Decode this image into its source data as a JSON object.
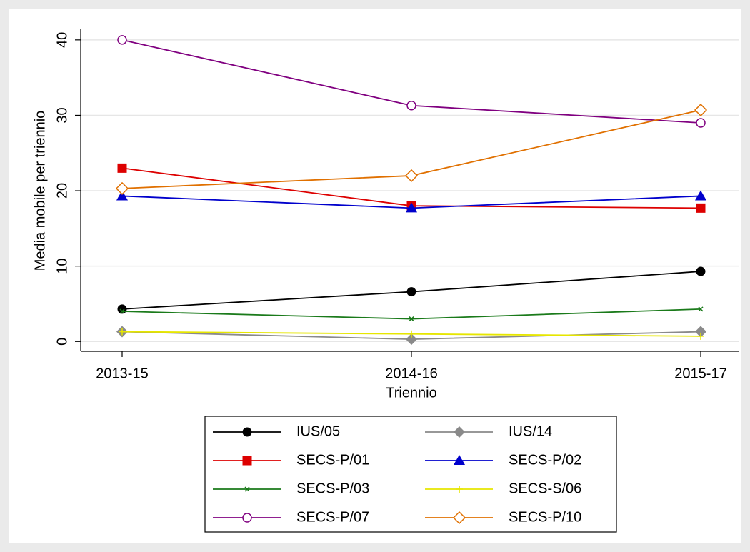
{
  "chart_data": {
    "type": "line",
    "x_label": "Triennio",
    "y_label": "Media mobile per triennio",
    "categories": [
      "2013-15",
      "2014-16",
      "2015-17"
    ],
    "ylim": [
      -1.3,
      41.5
    ],
    "yticks": [
      0,
      10,
      20,
      30,
      40
    ],
    "grid": true,
    "legend": "bottom",
    "series": [
      {
        "name": "IUS/05",
        "color": "#000000",
        "marker": "circle",
        "values": [
          4.3,
          6.6,
          9.3
        ]
      },
      {
        "name": "IUS/14",
        "color": "#8a8a8a",
        "marker": "diamond",
        "values": [
          1.3,
          0.3,
          1.3
        ]
      },
      {
        "name": "SECS-P/01",
        "color": "#dd0000",
        "marker": "square",
        "values": [
          23,
          18,
          17.7
        ]
      },
      {
        "name": "SECS-P/02",
        "color": "#0000cc",
        "marker": "triangle",
        "values": [
          19.3,
          17.7,
          19.3
        ]
      },
      {
        "name": "SECS-P/03",
        "color": "#1a7a1a",
        "marker": "x",
        "values": [
          4.0,
          3.0,
          4.3
        ]
      },
      {
        "name": "SECS-S/06",
        "color": "#e6e600",
        "marker": "plus",
        "values": [
          1.3,
          1.0,
          0.7
        ]
      },
      {
        "name": "SECS-P/07",
        "color": "#800080",
        "marker": "hollow-circle",
        "values": [
          40,
          31.3,
          29
        ]
      },
      {
        "name": "SECS-P/10",
        "color": "#e07000",
        "marker": "hollow-diamond",
        "values": [
          20.3,
          22,
          30.7
        ]
      }
    ]
  }
}
